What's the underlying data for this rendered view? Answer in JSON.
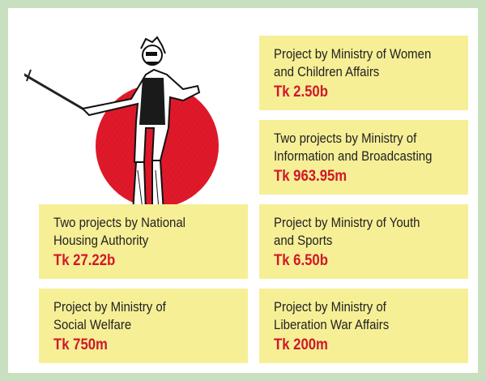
{
  "illustration": {
    "name": "sketch of man with sword in front of red sun",
    "sun_color": "#e0192a"
  },
  "colors": {
    "card_background": "#f6ef96",
    "amount_text": "#d0182a",
    "frame": "#c8e0c0"
  },
  "projects": [
    {
      "description_lines": [
        "Project by Ministry of Women",
        "and Children Affairs"
      ],
      "amount": "Tk 2.50b"
    },
    {
      "description_lines": [
        "Two projects by Ministry of",
        "Information and Broadcasting"
      ],
      "amount": "Tk 963.95m"
    },
    {
      "description_lines": [
        "Two projects by National",
        "Housing Authority"
      ],
      "amount": "Tk 27.22b"
    },
    {
      "description_lines": [
        "Project by Ministry of Youth",
        "and Sports"
      ],
      "amount": "Tk 6.50b"
    },
    {
      "description_lines": [
        "Project by Ministry of",
        "Social Welfare"
      ],
      "amount": "Tk 750m"
    },
    {
      "description_lines": [
        "Project by Ministry of",
        "Liberation War Affairs"
      ],
      "amount": "Tk 200m"
    }
  ]
}
